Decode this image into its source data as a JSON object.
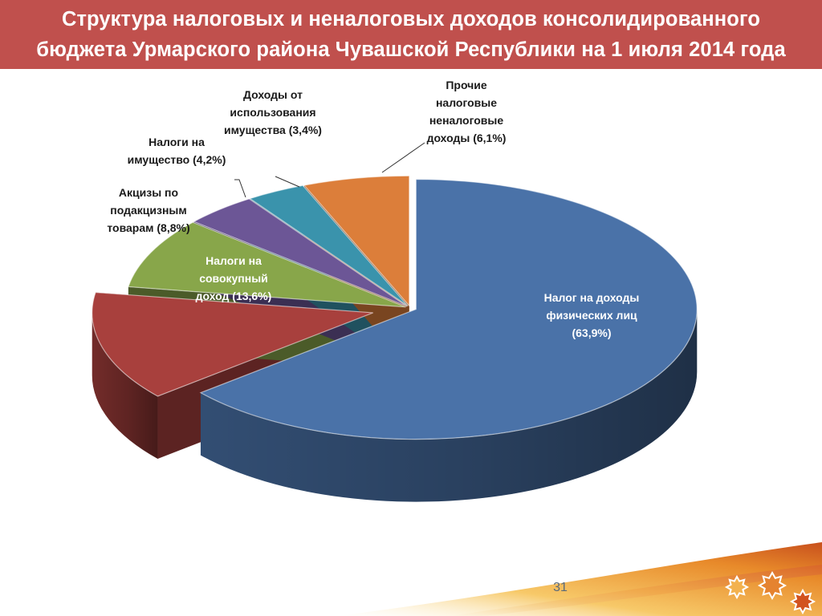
{
  "slide": {
    "title_line1": "Структура налоговых и неналоговых доходов консолидированного",
    "title_line2": "бюджета Урмарского района Чувашской Республики на 1 июля 2014 года",
    "page_number": "31"
  },
  "colors": {
    "title_bar": "#c0504d",
    "label_light": "#ffffff",
    "label_dark": "#1a1a1a"
  },
  "chart_data": {
    "type": "pie",
    "style": "3d-exploded",
    "title": "Структура налоговых и неналоговых доходов консолидированного бюджета Урмарского района Чувашской Республики на 1 июля 2014 года",
    "legend": "none",
    "slices": [
      {
        "label_lines": [
          "Налог на доходы",
          "физических лиц",
          "(63,9%)"
        ],
        "value": 63.9,
        "color": "#4a72a8",
        "label_inside": true
      },
      {
        "label_lines": [
          "Налоги на",
          "совокупный",
          "доход (13,6%)"
        ],
        "value": 13.6,
        "color": "#a8403d",
        "label_inside": true
      },
      {
        "label_lines": [
          "Акцизы по",
          "подакцизным",
          "товарам (8,8%)"
        ],
        "value": 8.8,
        "color": "#88a64a",
        "label_inside": false
      },
      {
        "label_lines": [
          "Налоги на",
          "имущество (4,2%)"
        ],
        "value": 4.2,
        "color": "#6c5696",
        "label_inside": false
      },
      {
        "label_lines": [
          "Доходы от",
          "использования",
          "имущества (3,4%)"
        ],
        "value": 3.4,
        "color": "#3a93ac",
        "label_inside": false
      },
      {
        "label_lines": [
          "Прочие",
          "налоговые",
          "неналоговые",
          "доходы (6,1%)"
        ],
        "value": 6.1,
        "color": "#dc7e3a",
        "label_inside": false
      }
    ]
  }
}
